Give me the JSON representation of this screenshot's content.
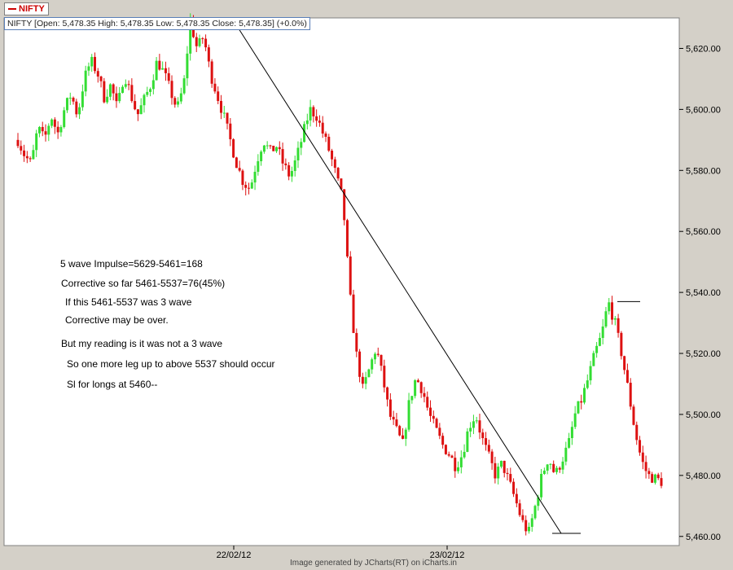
{
  "legend": {
    "symbol": "NIFTY",
    "color": "#cc0000"
  },
  "ohlc_text": "NIFTY [Open: 5,478.35  High: 5,478.35  Low: 5,478.35  Close: 5,478.35] (+0.0%)",
  "footer": "Image generated by  JCharts(RT) on iCharts.in",
  "annotations": [
    "5 wave Impulse=5629-5461=168",
    "Corrective so far 5461-5537=76(45%)",
    "If this 5461-5537 was 3 wave",
    "Corrective may be over.",
    "But my reading is it was not a 3 wave",
    "So one more leg up to above 5537 should occur",
    "Sl for longs at 5460--"
  ],
  "chart_data": {
    "type": "candlestick",
    "symbol": "NIFTY",
    "y_ticks": [
      "5,460.00",
      "5,480.00",
      "5,500.00",
      "5,520.00",
      "5,540.00",
      "5,560.00",
      "5,580.00",
      "5,600.00",
      "5,620.00"
    ],
    "x_ticks": [
      "22/02/12",
      "23/02/12"
    ],
    "ylim": [
      5457,
      5630
    ],
    "grid": false,
    "up_color": "#33dd33",
    "down_color": "#dd1111",
    "trendline": {
      "from": 5629,
      "to": 5461
    },
    "levels": [
      5537,
      5461
    ],
    "close_path": [
      5590,
      5585,
      5582,
      5594,
      5590,
      5598,
      5592,
      5600,
      5605,
      5598,
      5610,
      5616,
      5612,
      5604,
      5608,
      5600,
      5612,
      5605,
      5598,
      5603,
      5608,
      5616,
      5612,
      5606,
      5600,
      5608,
      5629,
      5620,
      5624,
      5612,
      5605,
      5598,
      5590,
      5582,
      5576,
      5574,
      5583,
      5590,
      5586,
      5588,
      5582,
      5578,
      5584,
      5592,
      5600,
      5598,
      5592,
      5586,
      5578,
      5570,
      5540,
      5520,
      5508,
      5515,
      5522,
      5512,
      5500,
      5495,
      5490,
      5504,
      5512,
      5508,
      5500,
      5495,
      5490,
      5487,
      5483,
      5487,
      5496,
      5500,
      5492,
      5486,
      5480,
      5484,
      5478,
      5472,
      5465,
      5461,
      5470,
      5480,
      5486,
      5480,
      5485,
      5490,
      5500,
      5505,
      5512,
      5520,
      5526,
      5537,
      5530,
      5520,
      5508,
      5495,
      5485,
      5480,
      5479,
      5478
    ]
  }
}
